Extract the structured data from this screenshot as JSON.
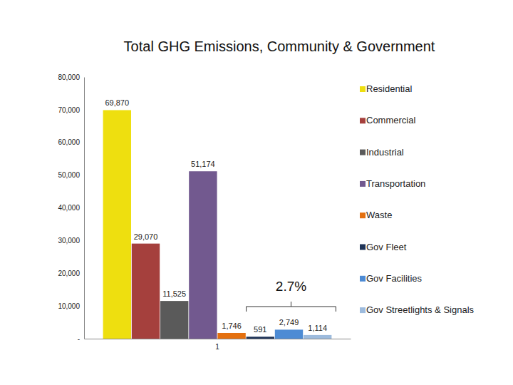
{
  "chart_data": {
    "type": "bar",
    "title": "Total GHG Emissions, Community & Government",
    "categories": [
      "1"
    ],
    "series": [
      {
        "name": "Residential",
        "color": "#eedf0f",
        "values": [
          69870
        ],
        "value_labels": [
          "69,870"
        ]
      },
      {
        "name": "Commercial",
        "color": "#a5403d",
        "values": [
          29070
        ],
        "value_labels": [
          "29,070"
        ]
      },
      {
        "name": "Industrial",
        "color": "#5a5a5a",
        "values": [
          11525
        ],
        "value_labels": [
          "11,525"
        ]
      },
      {
        "name": "Transportation",
        "color": "#72598f",
        "values": [
          51174
        ],
        "value_labels": [
          "51,174"
        ]
      },
      {
        "name": "Waste",
        "color": "#e4700f",
        "values": [
          1746
        ],
        "value_labels": [
          "1,746"
        ]
      },
      {
        "name": "Gov Fleet",
        "color": "#1f3458",
        "values": [
          591
        ],
        "value_labels": [
          "591"
        ]
      },
      {
        "name": "Gov Facilities",
        "color": "#4d8bd4",
        "values": [
          2749
        ],
        "value_labels": [
          "2,749"
        ]
      },
      {
        "name": "Gov Streetlights & Signals",
        "color": "#9dbbdd",
        "values": [
          1114
        ],
        "value_labels": [
          "1,114"
        ]
      }
    ],
    "annotation": "2.7%",
    "ylim": [
      0,
      80000
    ],
    "yticks": [
      {
        "value": 0,
        "label": "-"
      },
      {
        "value": 10000,
        "label": "10,000"
      },
      {
        "value": 20000,
        "label": "20,000"
      },
      {
        "value": 30000,
        "label": "30,000"
      },
      {
        "value": 40000,
        "label": "40,000"
      },
      {
        "value": 50000,
        "label": "50,000"
      },
      {
        "value": 60000,
        "label": "60,000"
      },
      {
        "value": 70000,
        "label": "70,000"
      },
      {
        "value": 80000,
        "label": "80,000"
      }
    ],
    "grid": false,
    "legend": "right",
    "data_labels": true
  }
}
